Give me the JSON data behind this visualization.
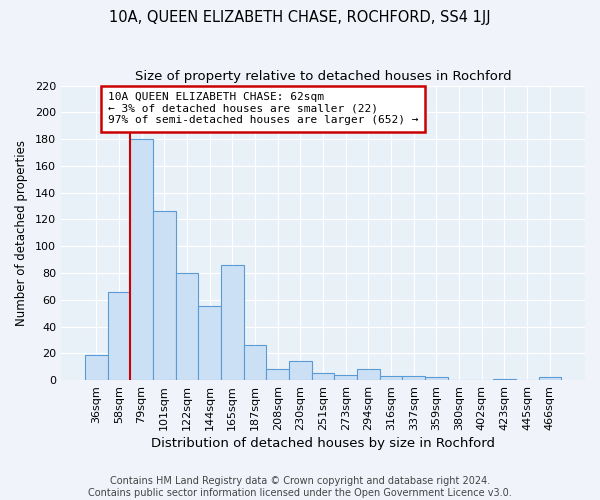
{
  "title": "10A, QUEEN ELIZABETH CHASE, ROCHFORD, SS4 1JJ",
  "subtitle": "Size of property relative to detached houses in Rochford",
  "xlabel": "Distribution of detached houses by size in Rochford",
  "ylabel": "Number of detached properties",
  "categories": [
    "36sqm",
    "58sqm",
    "79sqm",
    "101sqm",
    "122sqm",
    "144sqm",
    "165sqm",
    "187sqm",
    "208sqm",
    "230sqm",
    "251sqm",
    "273sqm",
    "294sqm",
    "316sqm",
    "337sqm",
    "359sqm",
    "380sqm",
    "402sqm",
    "423sqm",
    "445sqm",
    "466sqm"
  ],
  "values": [
    19,
    66,
    180,
    126,
    80,
    55,
    86,
    26,
    8,
    14,
    5,
    4,
    8,
    3,
    3,
    2,
    0,
    0,
    1,
    0,
    2
  ],
  "bar_color": "#cce0f5",
  "bar_edge_color": "#5b9bd5",
  "red_line_x": 1.5,
  "annotation_text": "10A QUEEN ELIZABETH CHASE: 62sqm\n← 3% of detached houses are smaller (22)\n97% of semi-detached houses are larger (652) →",
  "annotation_box_color": "white",
  "annotation_box_edge_color": "#cc0000",
  "ylim": [
    0,
    220
  ],
  "yticks": [
    0,
    20,
    40,
    60,
    80,
    100,
    120,
    140,
    160,
    180,
    200,
    220
  ],
  "footer": "Contains HM Land Registry data © Crown copyright and database right 2024.\nContains public sector information licensed under the Open Government Licence v3.0.",
  "background_color": "#f0f4fa",
  "plot_bg_color": "#e8f0f8",
  "title_fontsize": 10.5,
  "subtitle_fontsize": 9.5,
  "xlabel_fontsize": 9.5,
  "ylabel_fontsize": 8.5,
  "footer_fontsize": 7,
  "tick_fontsize": 8,
  "annot_fontsize": 8
}
